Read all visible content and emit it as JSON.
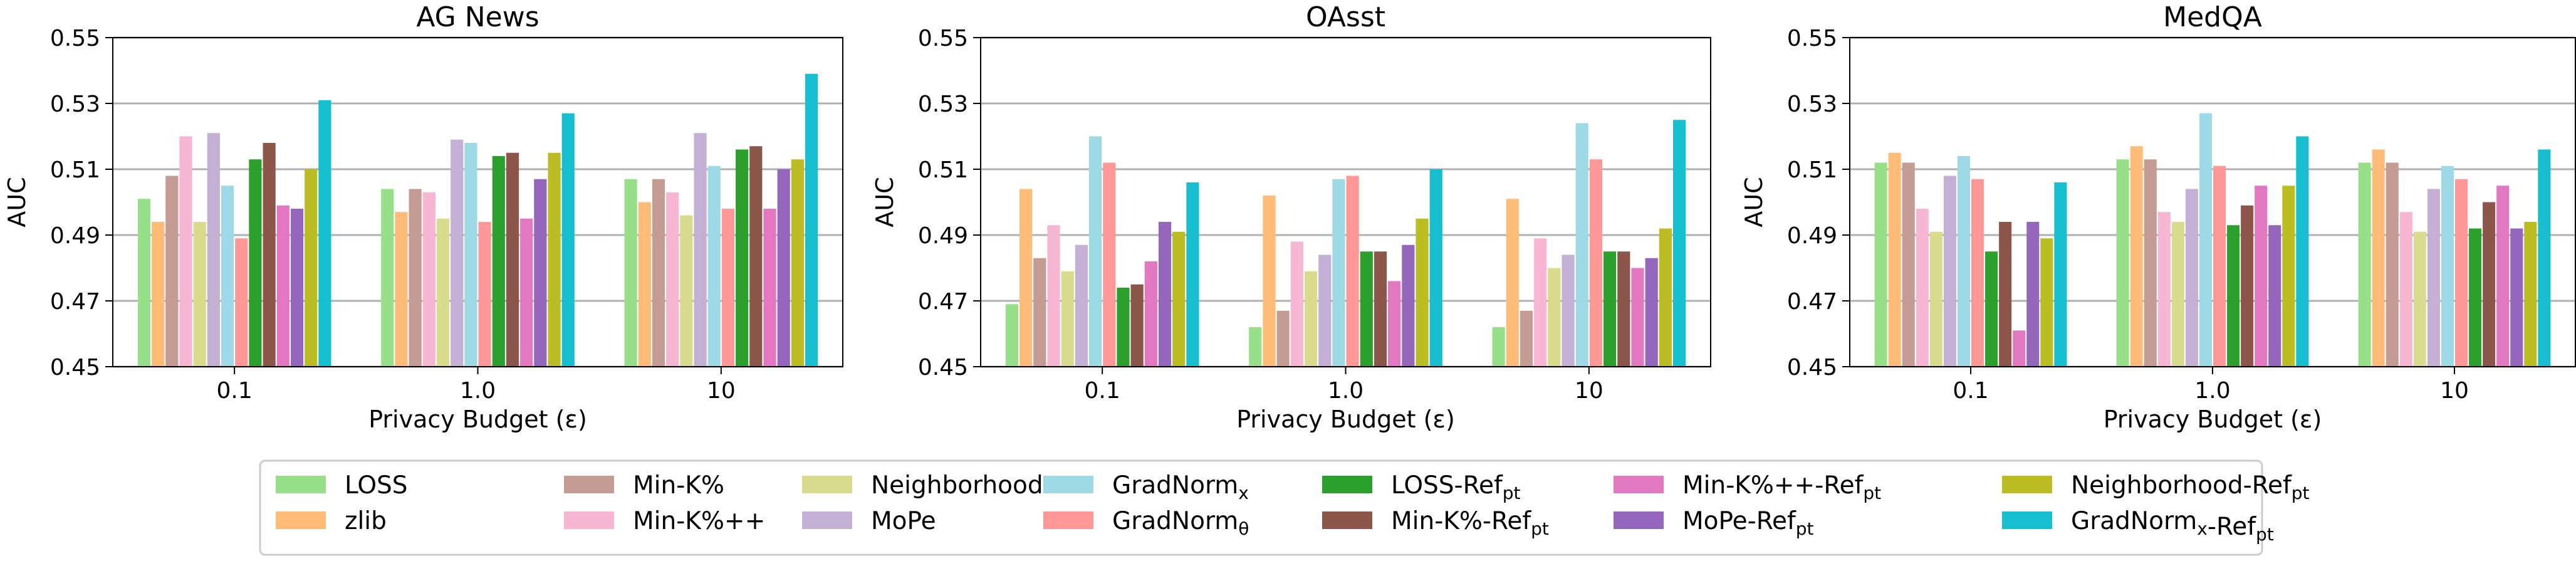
{
  "chart_data": [
    {
      "type": "bar",
      "title": "AG News",
      "xlabel": "Privacy Budget (ε)",
      "ylabel": "AUC",
      "ylim": [
        0.45,
        0.55
      ],
      "yticks": [
        "0.45",
        "0.47",
        "0.49",
        "0.51",
        "0.53",
        "0.55"
      ],
      "categories": [
        "0.1",
        "1.0",
        "10"
      ],
      "grid": "horizontal",
      "series": [
        {
          "name": "LOSS",
          "values": [
            0.501,
            0.504,
            0.507
          ]
        },
        {
          "name": "zlib",
          "values": [
            0.494,
            0.497,
            0.5
          ]
        },
        {
          "name": "Min-K%",
          "values": [
            0.508,
            0.504,
            0.507
          ]
        },
        {
          "name": "Min-K%++",
          "values": [
            0.52,
            0.503,
            0.503
          ]
        },
        {
          "name": "Neighborhood",
          "values": [
            0.494,
            0.495,
            0.496
          ]
        },
        {
          "name": "MoPe",
          "values": [
            0.521,
            0.519,
            0.521
          ]
        },
        {
          "name": "GradNorm_x",
          "values": [
            0.505,
            0.518,
            0.511
          ]
        },
        {
          "name": "GradNorm_θ",
          "values": [
            0.489,
            0.494,
            0.498
          ]
        },
        {
          "name": "LOSS-Ref_pt",
          "values": [
            0.513,
            0.514,
            0.516
          ]
        },
        {
          "name": "Min-K%-Ref_pt",
          "values": [
            0.518,
            0.515,
            0.517
          ]
        },
        {
          "name": "Min-K%++-Ref_pt",
          "values": [
            0.499,
            0.495,
            0.498
          ]
        },
        {
          "name": "MoPe-Ref_pt",
          "values": [
            0.498,
            0.507,
            0.51
          ]
        },
        {
          "name": "Neighborhood-Ref_pt",
          "values": [
            0.51,
            0.515,
            0.513
          ]
        },
        {
          "name": "GradNorm_x-Ref_pt",
          "values": [
            0.531,
            0.527,
            0.539
          ]
        }
      ]
    },
    {
      "type": "bar",
      "title": "OAsst",
      "xlabel": "Privacy Budget (ε)",
      "ylabel": "AUC",
      "ylim": [
        0.45,
        0.55
      ],
      "yticks": [
        "0.45",
        "0.47",
        "0.49",
        "0.51",
        "0.53",
        "0.55"
      ],
      "categories": [
        "0.1",
        "1.0",
        "10"
      ],
      "grid": "horizontal",
      "series": [
        {
          "name": "LOSS",
          "values": [
            0.469,
            0.462,
            0.462
          ]
        },
        {
          "name": "zlib",
          "values": [
            0.504,
            0.502,
            0.501
          ]
        },
        {
          "name": "Min-K%",
          "values": [
            0.483,
            0.467,
            0.467
          ]
        },
        {
          "name": "Min-K%++",
          "values": [
            0.493,
            0.488,
            0.489
          ]
        },
        {
          "name": "Neighborhood",
          "values": [
            0.479,
            0.479,
            0.48
          ]
        },
        {
          "name": "MoPe",
          "values": [
            0.487,
            0.484,
            0.484
          ]
        },
        {
          "name": "GradNorm_x",
          "values": [
            0.52,
            0.507,
            0.524
          ]
        },
        {
          "name": "GradNorm_θ",
          "values": [
            0.512,
            0.508,
            0.513
          ]
        },
        {
          "name": "LOSS-Ref_pt",
          "values": [
            0.474,
            0.485,
            0.485
          ]
        },
        {
          "name": "Min-K%-Ref_pt",
          "values": [
            0.475,
            0.485,
            0.485
          ]
        },
        {
          "name": "Min-K%++-Ref_pt",
          "values": [
            0.482,
            0.476,
            0.48
          ]
        },
        {
          "name": "MoPe-Ref_pt",
          "values": [
            0.494,
            0.487,
            0.483
          ]
        },
        {
          "name": "Neighborhood-Ref_pt",
          "values": [
            0.491,
            0.495,
            0.492
          ]
        },
        {
          "name": "GradNorm_x-Ref_pt",
          "values": [
            0.506,
            0.51,
            0.525
          ]
        }
      ]
    },
    {
      "type": "bar",
      "title": "MedQA",
      "xlabel": "Privacy Budget (ε)",
      "ylabel": "AUC",
      "ylim": [
        0.45,
        0.55
      ],
      "yticks": [
        "0.45",
        "0.47",
        "0.49",
        "0.51",
        "0.53",
        "0.55"
      ],
      "categories": [
        "0.1",
        "1.0",
        "10"
      ],
      "grid": "horizontal",
      "series": [
        {
          "name": "LOSS",
          "values": [
            0.512,
            0.513,
            0.512
          ]
        },
        {
          "name": "zlib",
          "values": [
            0.515,
            0.517,
            0.516
          ]
        },
        {
          "name": "Min-K%",
          "values": [
            0.512,
            0.513,
            0.512
          ]
        },
        {
          "name": "Min-K%++",
          "values": [
            0.498,
            0.497,
            0.497
          ]
        },
        {
          "name": "Neighborhood",
          "values": [
            0.491,
            0.494,
            0.491
          ]
        },
        {
          "name": "MoPe",
          "values": [
            0.508,
            0.504,
            0.504
          ]
        },
        {
          "name": "GradNorm_x",
          "values": [
            0.514,
            0.527,
            0.511
          ]
        },
        {
          "name": "GradNorm_θ",
          "values": [
            0.507,
            0.511,
            0.507
          ]
        },
        {
          "name": "LOSS-Ref_pt",
          "values": [
            0.485,
            0.493,
            0.492
          ]
        },
        {
          "name": "Min-K%-Ref_pt",
          "values": [
            0.494,
            0.499,
            0.5
          ]
        },
        {
          "name": "Min-K%++-Ref_pt",
          "values": [
            0.461,
            0.505,
            0.505
          ]
        },
        {
          "name": "MoPe-Ref_pt",
          "values": [
            0.494,
            0.493,
            0.492
          ]
        },
        {
          "name": "Neighborhood-Ref_pt",
          "values": [
            0.489,
            0.505,
            0.494
          ]
        },
        {
          "name": "GradNorm_x-Ref_pt",
          "values": [
            0.506,
            0.52,
            0.516
          ]
        }
      ]
    }
  ],
  "legend": [
    {
      "name": "LOSS",
      "label": "LOSS",
      "sub": "",
      "color": "#98df8a"
    },
    {
      "name": "zlib",
      "label": "zlib",
      "sub": "",
      "color": "#ffbb78"
    },
    {
      "name": "Min-K%",
      "label": "Min-K%",
      "sub": "",
      "color": "#c49c94"
    },
    {
      "name": "Min-K%++",
      "label": "Min-K%++",
      "sub": "",
      "color": "#f7b6d2"
    },
    {
      "name": "Neighborhood",
      "label": "Neighborhood",
      "sub": "",
      "color": "#dbdb8d"
    },
    {
      "name": "MoPe",
      "label": "MoPe",
      "sub": "",
      "color": "#c5b0d5"
    },
    {
      "name": "GradNorm_x",
      "label": "GradNorm",
      "sub": "x",
      "color": "#9edae5"
    },
    {
      "name": "GradNorm_θ",
      "label": "GradNorm",
      "sub": "θ",
      "color": "#ff9896"
    },
    {
      "name": "LOSS-Ref_pt",
      "label": "LOSS-Ref",
      "sub": "pt",
      "color": "#2ca02c"
    },
    {
      "name": "Min-K%-Ref_pt",
      "label": "Min-K%-Ref",
      "sub": "pt",
      "color": "#8c564b"
    },
    {
      "name": "Min-K%++-Ref_pt",
      "label": "Min-K%++-Ref",
      "sub": "pt",
      "color": "#e377c2"
    },
    {
      "name": "MoPe-Ref_pt",
      "label": "MoPe-Ref",
      "sub": "pt",
      "color": "#9467bd"
    },
    {
      "name": "Neighborhood-Ref_pt",
      "label": "Neighborhood-Ref",
      "sub": "pt",
      "color": "#bcbd22"
    },
    {
      "name": "GradNorm_x-Ref_pt",
      "label": "GradNorm",
      "sub": "x",
      "label2": "-Ref",
      "sub2": "pt",
      "color": "#17becf"
    }
  ]
}
